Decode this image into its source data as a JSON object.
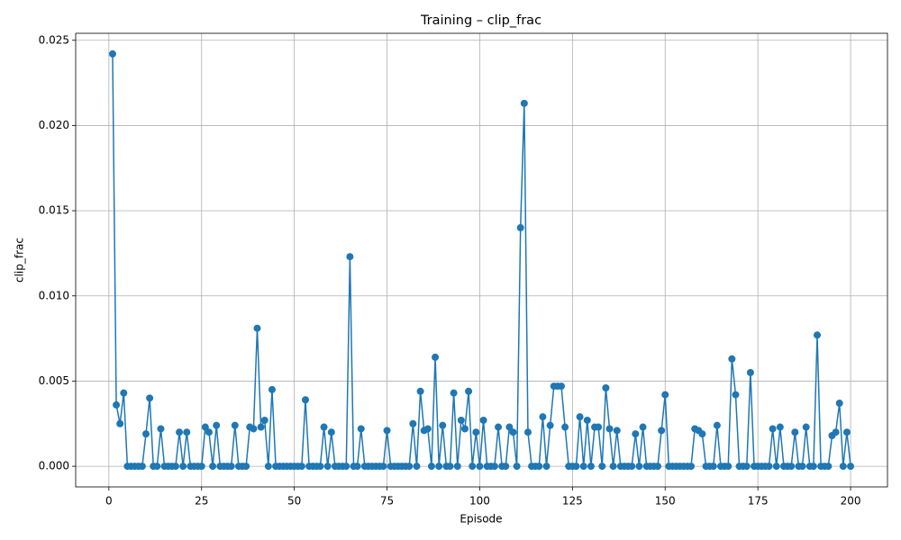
{
  "chart_data": {
    "type": "line",
    "title": "Training – clip_frac",
    "x_label": "Episode",
    "y_label": "clip_frac",
    "x": [
      1,
      2,
      3,
      4,
      5,
      6,
      7,
      8,
      9,
      10,
      11,
      12,
      13,
      14,
      15,
      16,
      17,
      18,
      19,
      20,
      21,
      22,
      23,
      24,
      25,
      26,
      27,
      28,
      29,
      30,
      31,
      32,
      33,
      34,
      35,
      36,
      37,
      38,
      39,
      40,
      41,
      42,
      43,
      44,
      45,
      46,
      47,
      48,
      49,
      50,
      51,
      52,
      53,
      54,
      55,
      56,
      57,
      58,
      59,
      60,
      61,
      62,
      63,
      64,
      65,
      66,
      67,
      68,
      69,
      70,
      71,
      72,
      73,
      74,
      75,
      76,
      77,
      78,
      79,
      80,
      81,
      82,
      83,
      84,
      85,
      86,
      87,
      88,
      89,
      90,
      91,
      92,
      93,
      94,
      95,
      96,
      97,
      98,
      99,
      100,
      101,
      102,
      103,
      104,
      105,
      106,
      107,
      108,
      109,
      110,
      111,
      112,
      113,
      114,
      115,
      116,
      117,
      118,
      119,
      120,
      121,
      122,
      123,
      124,
      125,
      126,
      127,
      128,
      129,
      130,
      131,
      132,
      133,
      134,
      135,
      136,
      137,
      138,
      139,
      140,
      141,
      142,
      143,
      144,
      145,
      146,
      147,
      148,
      149,
      150,
      151,
      152,
      153,
      154,
      155,
      156,
      157,
      158,
      159,
      160,
      161,
      162,
      163,
      164,
      165,
      166,
      167,
      168,
      169,
      170,
      171,
      172,
      173,
      174,
      175,
      176,
      177,
      178,
      179,
      180,
      181,
      182,
      183,
      184,
      185,
      186,
      187,
      188,
      189,
      190,
      191,
      192,
      193,
      194,
      195,
      196,
      197,
      198,
      199,
      200
    ],
    "values": [
      0.0242,
      0.0036,
      0.0025,
      0.0043,
      0,
      0,
      0,
      0,
      0,
      0.0019,
      0.004,
      0,
      0,
      0.0022,
      0,
      0,
      0,
      0,
      0.002,
      0,
      0.002,
      0,
      0,
      0,
      0,
      0.0023,
      0.002,
      0,
      0.0024,
      0,
      0,
      0,
      0,
      0.0024,
      0,
      0,
      0,
      0.0023,
      0.0022,
      0.0081,
      0.0023,
      0.0027,
      0,
      0.0045,
      0,
      0,
      0,
      0,
      0,
      0,
      0,
      0,
      0.0039,
      0,
      0,
      0,
      0,
      0.0023,
      0,
      0.002,
      0,
      0,
      0,
      0,
      0.0123,
      0,
      0,
      0.0022,
      0,
      0,
      0,
      0,
      0,
      0,
      0.0021,
      0,
      0,
      0,
      0,
      0,
      0,
      0.0025,
      0,
      0.0044,
      0.0021,
      0.0022,
      0,
      0.0064,
      0,
      0.0024,
      0,
      0,
      0.0043,
      0,
      0.0027,
      0.0022,
      0.0044,
      0,
      0.002,
      0,
      0.0027,
      0,
      0,
      0,
      0.0023,
      0,
      0,
      0.0023,
      0.002,
      0,
      0.014,
      0.0213,
      0.002,
      0,
      0,
      0,
      0.0029,
      0,
      0.0024,
      0.0047,
      0.0047,
      0.0047,
      0.0023,
      0,
      0,
      0,
      0.0029,
      0,
      0.0027,
      0,
      0.0023,
      0.0023,
      0,
      0.0046,
      0.0022,
      0,
      0.0021,
      0,
      0,
      0,
      0,
      0.0019,
      0,
      0.0023,
      0,
      0,
      0,
      0,
      0.0021,
      0.0042,
      0,
      0,
      0,
      0,
      0,
      0,
      0,
      0.0022,
      0.0021,
      0.0019,
      0,
      0,
      0,
      0.0024,
      0,
      0,
      0,
      0.0063,
      0.0042,
      0,
      0,
      0,
      0.0055,
      0,
      0,
      0,
      0,
      0,
      0.0022,
      0,
      0.0023,
      0,
      0,
      0,
      0.002,
      0,
      0,
      0.0023,
      0,
      0,
      0.0077,
      0,
      0,
      0,
      0.0018,
      0.002,
      0.0037,
      0,
      0.002,
      0
    ],
    "color": "#1f77b4",
    "xlim": [
      -8.95,
      209.95
    ],
    "xticks": [
      0,
      25,
      50,
      75,
      100,
      125,
      150,
      175,
      200
    ],
    "ylim": [
      -0.00121,
      0.02541
    ],
    "yticks": [
      {
        "value": 0,
        "label": "0.000"
      },
      0.005,
      {
        "value": 0.01,
        "label": "0.010"
      },
      0.015,
      {
        "value": 0.02,
        "label": "0.020"
      },
      0.025
    ],
    "grid": true
  }
}
